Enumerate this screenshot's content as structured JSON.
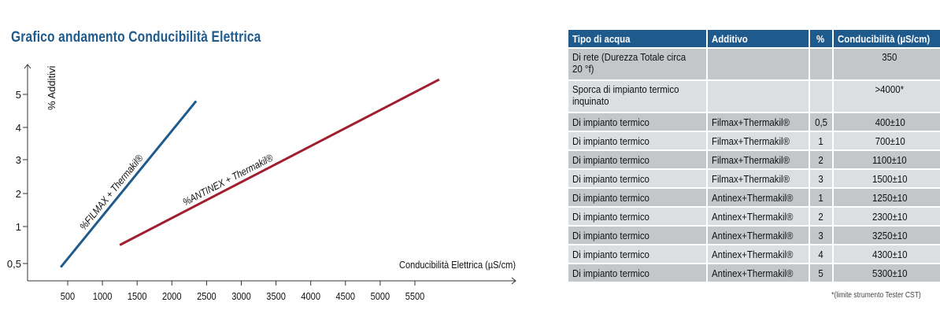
{
  "chart_data": {
    "type": "line",
    "title": "Grafico andamento Conducibilità Elettrica",
    "xlabel": "Conducibilità Elettrica (µS/cm)",
    "ylabel": "% Additivi",
    "xticks": [
      "500",
      "1000",
      "1500",
      "2000",
      "2500",
      "3000",
      "3500",
      "4000",
      "4500",
      "5000",
      "5500"
    ],
    "xtick_values": [
      500,
      1000,
      1500,
      2000,
      2500,
      3000,
      3500,
      4000,
      4500,
      5000,
      5500
    ],
    "yticks": [
      "0,5",
      "1",
      "2",
      "3",
      "4",
      "5"
    ],
    "ytick_values": [
      0.5,
      1,
      2,
      3,
      4,
      5
    ],
    "xlim": [
      0,
      6800
    ],
    "ylim": [
      0.3,
      5.9
    ],
    "grid": false,
    "series": [
      {
        "name": "%FILMAX + Thermakil®",
        "color": "#1f5a8c",
        "x": [
          400,
          2350
        ],
        "y": [
          0.45,
          4.8
        ]
      },
      {
        "name": "%ANTINEX + Thermakil®",
        "color": "#a01f2e",
        "x": [
          1250,
          5850
        ],
        "y": [
          0.75,
          5.45
        ]
      }
    ]
  },
  "table": {
    "headers": [
      "Tipo di acqua",
      "Additivo",
      "%",
      "Conducibilità (µS/cm)"
    ],
    "rows": [
      [
        "Di rete (Durezza Totale circa 20 °f)",
        "",
        "",
        "350"
      ],
      [
        "Sporca di impianto termico inquinato",
        "",
        "",
        ">4000*"
      ],
      [
        "Di impianto termico",
        "Filmax+Thermakil®",
        "0,5",
        "400±10"
      ],
      [
        "Di impianto termico",
        "Filmax+Thermakil®",
        "1",
        "700±10"
      ],
      [
        "Di impianto termico",
        "Filmax+Thermakil®",
        "2",
        "1100±10"
      ],
      [
        "Di impianto termico",
        "Filmax+Thermakil®",
        "3",
        "1500±10"
      ],
      [
        "Di impianto termico",
        "Antinex+Thermakil®",
        "1",
        "1250±10"
      ],
      [
        "Di impianto termico",
        "Antinex+Thermakil®",
        "2",
        "2300±10"
      ],
      [
        "Di impianto termico",
        "Antinex+Thermakil®",
        "3",
        "3250±10"
      ],
      [
        "Di impianto termico",
        "Antinex+Thermakil®",
        "4",
        "4300±10"
      ],
      [
        "Di impianto termico",
        "Antinex+Thermakil®",
        "5",
        "5300±10"
      ]
    ],
    "footnote": "*(limite strumento Tester CST)"
  }
}
